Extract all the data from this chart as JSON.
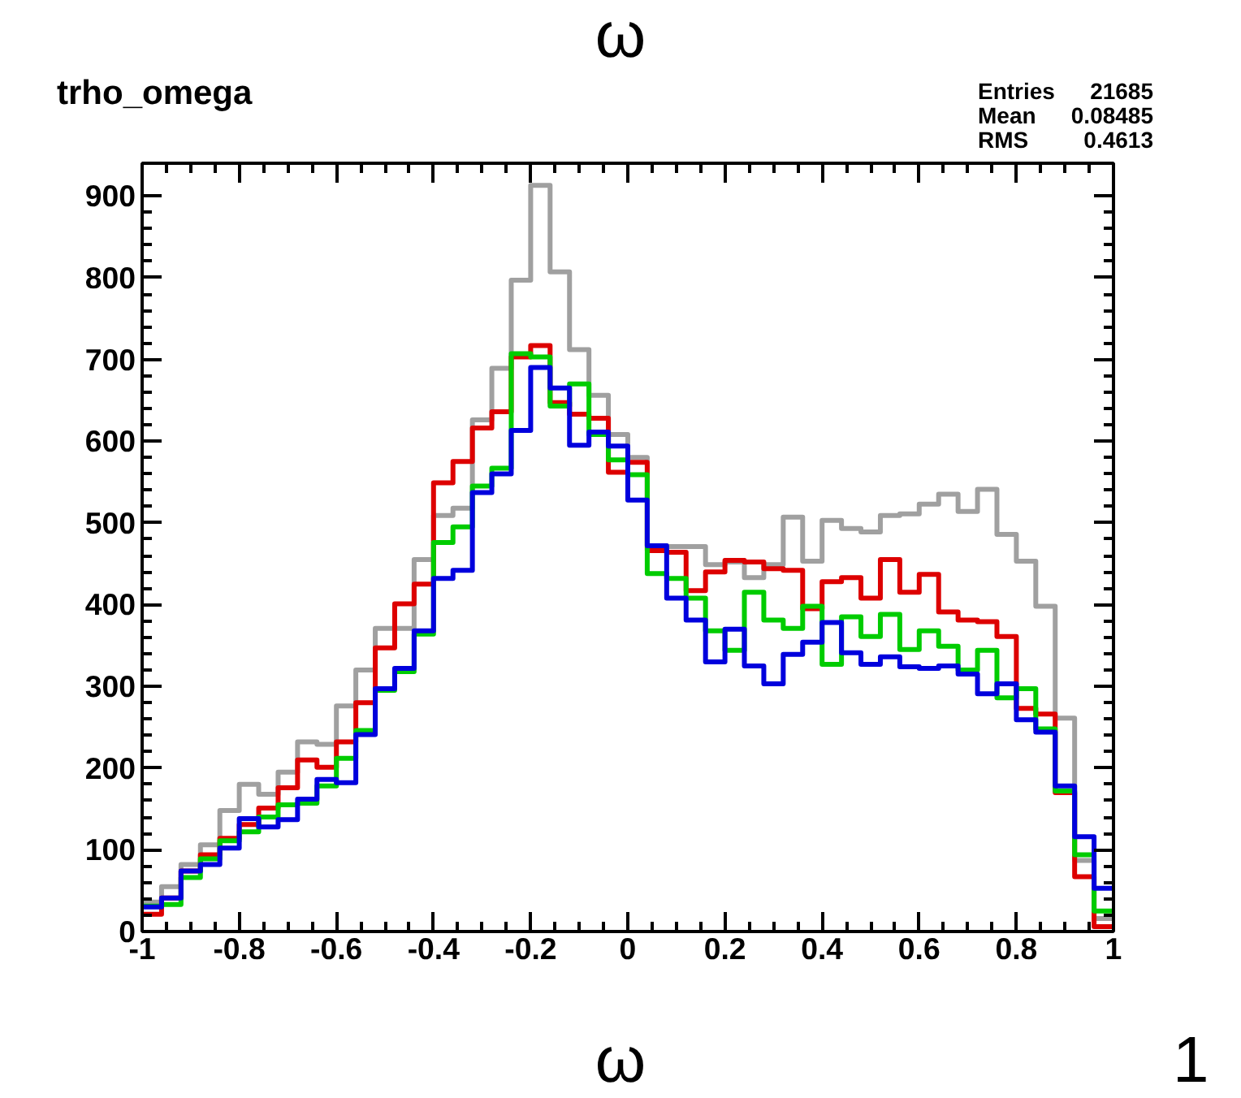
{
  "chart_data": {
    "type": "histogram",
    "title": "ω",
    "subtitle": "trho_omega",
    "xlabel": "ω",
    "annotations": [
      "Entries 21685",
      "Mean 0.08485",
      "RMS 0.4613",
      "1"
    ],
    "bins": [
      -1,
      -0.96,
      -0.92,
      -0.88,
      -0.84,
      -0.8,
      -0.76,
      -0.72,
      -0.68,
      -0.64,
      -0.6,
      -0.56,
      -0.52,
      -0.48,
      -0.44,
      -0.4,
      -0.36,
      -0.32,
      -0.28,
      -0.24,
      -0.2,
      -0.16,
      -0.12,
      -0.08,
      -0.04,
      0,
      0.04,
      0.08,
      0.12,
      0.16,
      0.2,
      0.24,
      0.28,
      0.32,
      0.36,
      0.4,
      0.44,
      0.48,
      0.52,
      0.56,
      0.6,
      0.64,
      0.68,
      0.72,
      0.76,
      0.8,
      0.84,
      0.88,
      0.92,
      0.96,
      1
    ],
    "series": [
      {
        "color": "#a0a0a0",
        "values": [
          36,
          55,
          82,
          106,
          148,
          180,
          168,
          195,
          232,
          229,
          276,
          320,
          371,
          371,
          455,
          509,
          518,
          626,
          689,
          797,
          913,
          807,
          712,
          656,
          608,
          580,
          472,
          471,
          471,
          449,
          452,
          433,
          449,
          507,
          453,
          503,
          493,
          489,
          509,
          511,
          523,
          535,
          514,
          541,
          486,
          453,
          398,
          261,
          87,
          16
        ]
      },
      {
        "color": "#dd0000",
        "values": [
          21,
          41,
          74,
          94,
          114,
          131,
          151,
          176,
          210,
          201,
          232,
          280,
          347,
          401,
          425,
          549,
          575,
          616,
          636,
          703,
          717,
          647,
          633,
          628,
          562,
          574,
          466,
          464,
          417,
          440,
          454,
          452,
          444,
          442,
          395,
          428,
          433,
          408,
          455,
          415,
          437,
          391,
          381,
          379,
          361,
          273,
          266,
          170,
          67,
          6
        ]
      },
      {
        "color": "#00cc00",
        "values": [
          31,
          33,
          66,
          89,
          111,
          122,
          140,
          155,
          157,
          178,
          212,
          246,
          295,
          318,
          364,
          476,
          495,
          545,
          567,
          707,
          703,
          643,
          670,
          608,
          577,
          559,
          438,
          432,
          408,
          368,
          344,
          415,
          381,
          371,
          398,
          327,
          385,
          361,
          388,
          345,
          368,
          349,
          320,
          344,
          286,
          297,
          248,
          172,
          94,
          25
        ]
      },
      {
        "color": "#0000dd",
        "values": [
          30,
          41,
          74,
          82,
          102,
          138,
          128,
          137,
          162,
          186,
          182,
          241,
          297,
          322,
          368,
          432,
          442,
          537,
          560,
          613,
          690,
          665,
          595,
          611,
          594,
          528,
          472,
          408,
          381,
          330,
          370,
          325,
          303,
          339,
          354,
          378,
          341,
          327,
          336,
          324,
          322,
          325,
          315,
          291,
          303,
          259,
          244,
          178,
          116,
          53
        ]
      }
    ],
    "xlim": [
      -1,
      1
    ],
    "ylim": [
      0,
      940
    ],
    "xticks": [
      -1,
      -0.8,
      -0.6,
      -0.4,
      -0.2,
      0,
      0.2,
      0.4,
      0.6,
      0.8,
      1
    ],
    "yticks": [
      0,
      100,
      200,
      300,
      400,
      500,
      600,
      700,
      800,
      900
    ],
    "grid": false
  }
}
